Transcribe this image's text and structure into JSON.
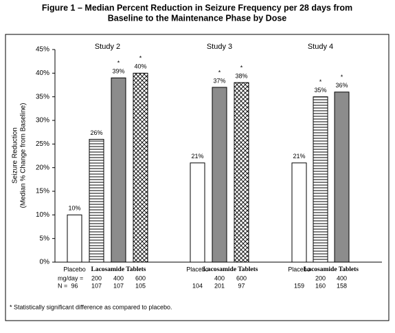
{
  "chart_data": {
    "type": "bar",
    "title_lines": [
      "Figure 1 – Median Percent Reduction in Seizure Frequency per 28 days from",
      "Baseline to the Maintenance Phase by Dose"
    ],
    "y_label_lines": [
      "Seizure Reduction",
      "(Median % Change from Baseline)"
    ],
    "ylim": [
      0,
      45
    ],
    "yticks": [
      {
        "value": 0,
        "label": "0%"
      },
      {
        "value": 5,
        "label": "5%"
      },
      {
        "value": 10,
        "label": "10%"
      },
      {
        "value": 15,
        "label": "15%"
      },
      {
        "value": 20,
        "label": "20%"
      },
      {
        "value": 25,
        "label": "25%"
      },
      {
        "value": 30,
        "label": "30%"
      },
      {
        "value": 35,
        "label": "35%"
      },
      {
        "value": 40,
        "label": "40%"
      },
      {
        "value": 45,
        "label": "45%"
      }
    ],
    "row_labels": [
      "mg/day =",
      "N ="
    ],
    "groups": [
      {
        "name": "Study 2",
        "placebo_label": "Placebo",
        "drug_label": "Lacosamide Tablets",
        "doses": [
          null,
          "200",
          "400",
          "600"
        ],
        "n": [
          96,
          107,
          107,
          105
        ],
        "values": [
          10,
          26,
          39,
          40
        ],
        "value_labels": [
          "10%",
          "26%",
          "39%",
          "40%"
        ],
        "patterns": [
          "none",
          "horizontal",
          "solid",
          "crosshatch"
        ],
        "markers": [
          null,
          null,
          "*",
          "*"
        ]
      },
      {
        "name": "Study 3",
        "placebo_label": "Placebo",
        "drug_label": "Lacosamide Tablets",
        "doses": [
          null,
          "400",
          "600"
        ],
        "n": [
          104,
          201,
          97
        ],
        "values": [
          21,
          37,
          38
        ],
        "value_labels": [
          "21%",
          "37%",
          "38%"
        ],
        "patterns": [
          "none",
          "solid",
          "crosshatch"
        ],
        "markers": [
          null,
          "*",
          "*"
        ]
      },
      {
        "name": "Study 4",
        "placebo_label": "Placebo",
        "drug_label": "Lacosamide Tablets",
        "doses": [
          null,
          "200",
          "400"
        ],
        "n": [
          159,
          160,
          158
        ],
        "values": [
          21,
          35,
          36
        ],
        "value_labels": [
          "21%",
          "35%",
          "36%"
        ],
        "patterns": [
          "none",
          "horizontal",
          "solid"
        ],
        "markers": [
          null,
          "*",
          "*"
        ]
      }
    ],
    "solid_color": "#8c8c8c",
    "footnote": "* Statistically significant difference as compared to placebo."
  }
}
